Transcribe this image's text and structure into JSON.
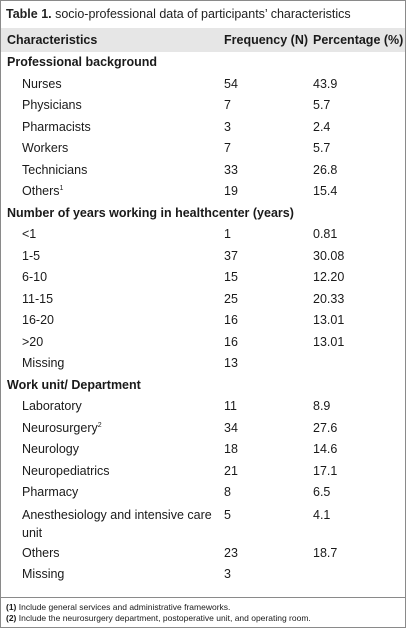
{
  "caption": {
    "label": "Table 1.",
    "text": " socio-professional data of participants’ characteristics"
  },
  "header": {
    "characteristics": "Characteristics",
    "frequency": "Frequency (N)",
    "percentage": "Percentage (%)"
  },
  "sections": [
    {
      "title": "Professional background",
      "rows": [
        {
          "label": "Nurses",
          "sup": "",
          "n": "54",
          "pct": "43.9"
        },
        {
          "label": "Physicians",
          "sup": "",
          "n": "7",
          "pct": "5.7"
        },
        {
          "label": "Pharmacists",
          "sup": "",
          "n": "3",
          "pct": "2.4"
        },
        {
          "label": "Workers",
          "sup": "",
          "n": "7",
          "pct": "5.7"
        },
        {
          "label": "Technicians",
          "sup": "",
          "n": "33",
          "pct": "26.8"
        },
        {
          "label": "Others",
          "sup": "1",
          "n": "19",
          "pct": "15.4"
        }
      ]
    },
    {
      "title": "Number of years working in healthcenter (years)",
      "rows": [
        {
          "label": "<1",
          "sup": "",
          "n": "1",
          "pct": "0.81"
        },
        {
          "label": "1-5",
          "sup": "",
          "n": "37",
          "pct": "30.08"
        },
        {
          "label": "6-10",
          "sup": "",
          "n": "15",
          "pct": "12.20"
        },
        {
          "label": "11-15",
          "sup": "",
          "n": "25",
          "pct": "20.33"
        },
        {
          "label": "16-20",
          "sup": "",
          "n": "16",
          "pct": "13.01"
        },
        {
          "label": ">20",
          "sup": "",
          "n": "16",
          "pct": "13.01"
        },
        {
          "label": "Missing",
          "sup": "",
          "n": "13",
          "pct": ""
        }
      ]
    },
    {
      "title": "Work unit/ Department",
      "rows": [
        {
          "label": "Laboratory",
          "sup": "",
          "n": "11",
          "pct": "8.9"
        },
        {
          "label": "Neurosurgery",
          "sup": "2",
          "n": "34",
          "pct": "27.6"
        },
        {
          "label": "Neurology",
          "sup": "",
          "n": "18",
          "pct": "14.6"
        },
        {
          "label": "Neuropediatrics",
          "sup": "",
          "n": "21",
          "pct": "17.1"
        },
        {
          "label": "Pharmacy",
          "sup": "",
          "n": "8",
          "pct": "6.5"
        },
        {
          "label": "Anesthesiology and intensive care unit",
          "sup": "",
          "n": "5",
          "pct": "4.1",
          "tall": true
        },
        {
          "label": "Others",
          "sup": "",
          "n": "23",
          "pct": "18.7"
        },
        {
          "label": "Missing",
          "sup": "",
          "n": "3",
          "pct": ""
        }
      ]
    }
  ],
  "footnotes": [
    {
      "mark": "(1)",
      "text": " Include general services and administrative frameworks."
    },
    {
      "mark": "(2)",
      "text": " Include the neurosurgery department, postoperative unit, and operating room."
    }
  ]
}
